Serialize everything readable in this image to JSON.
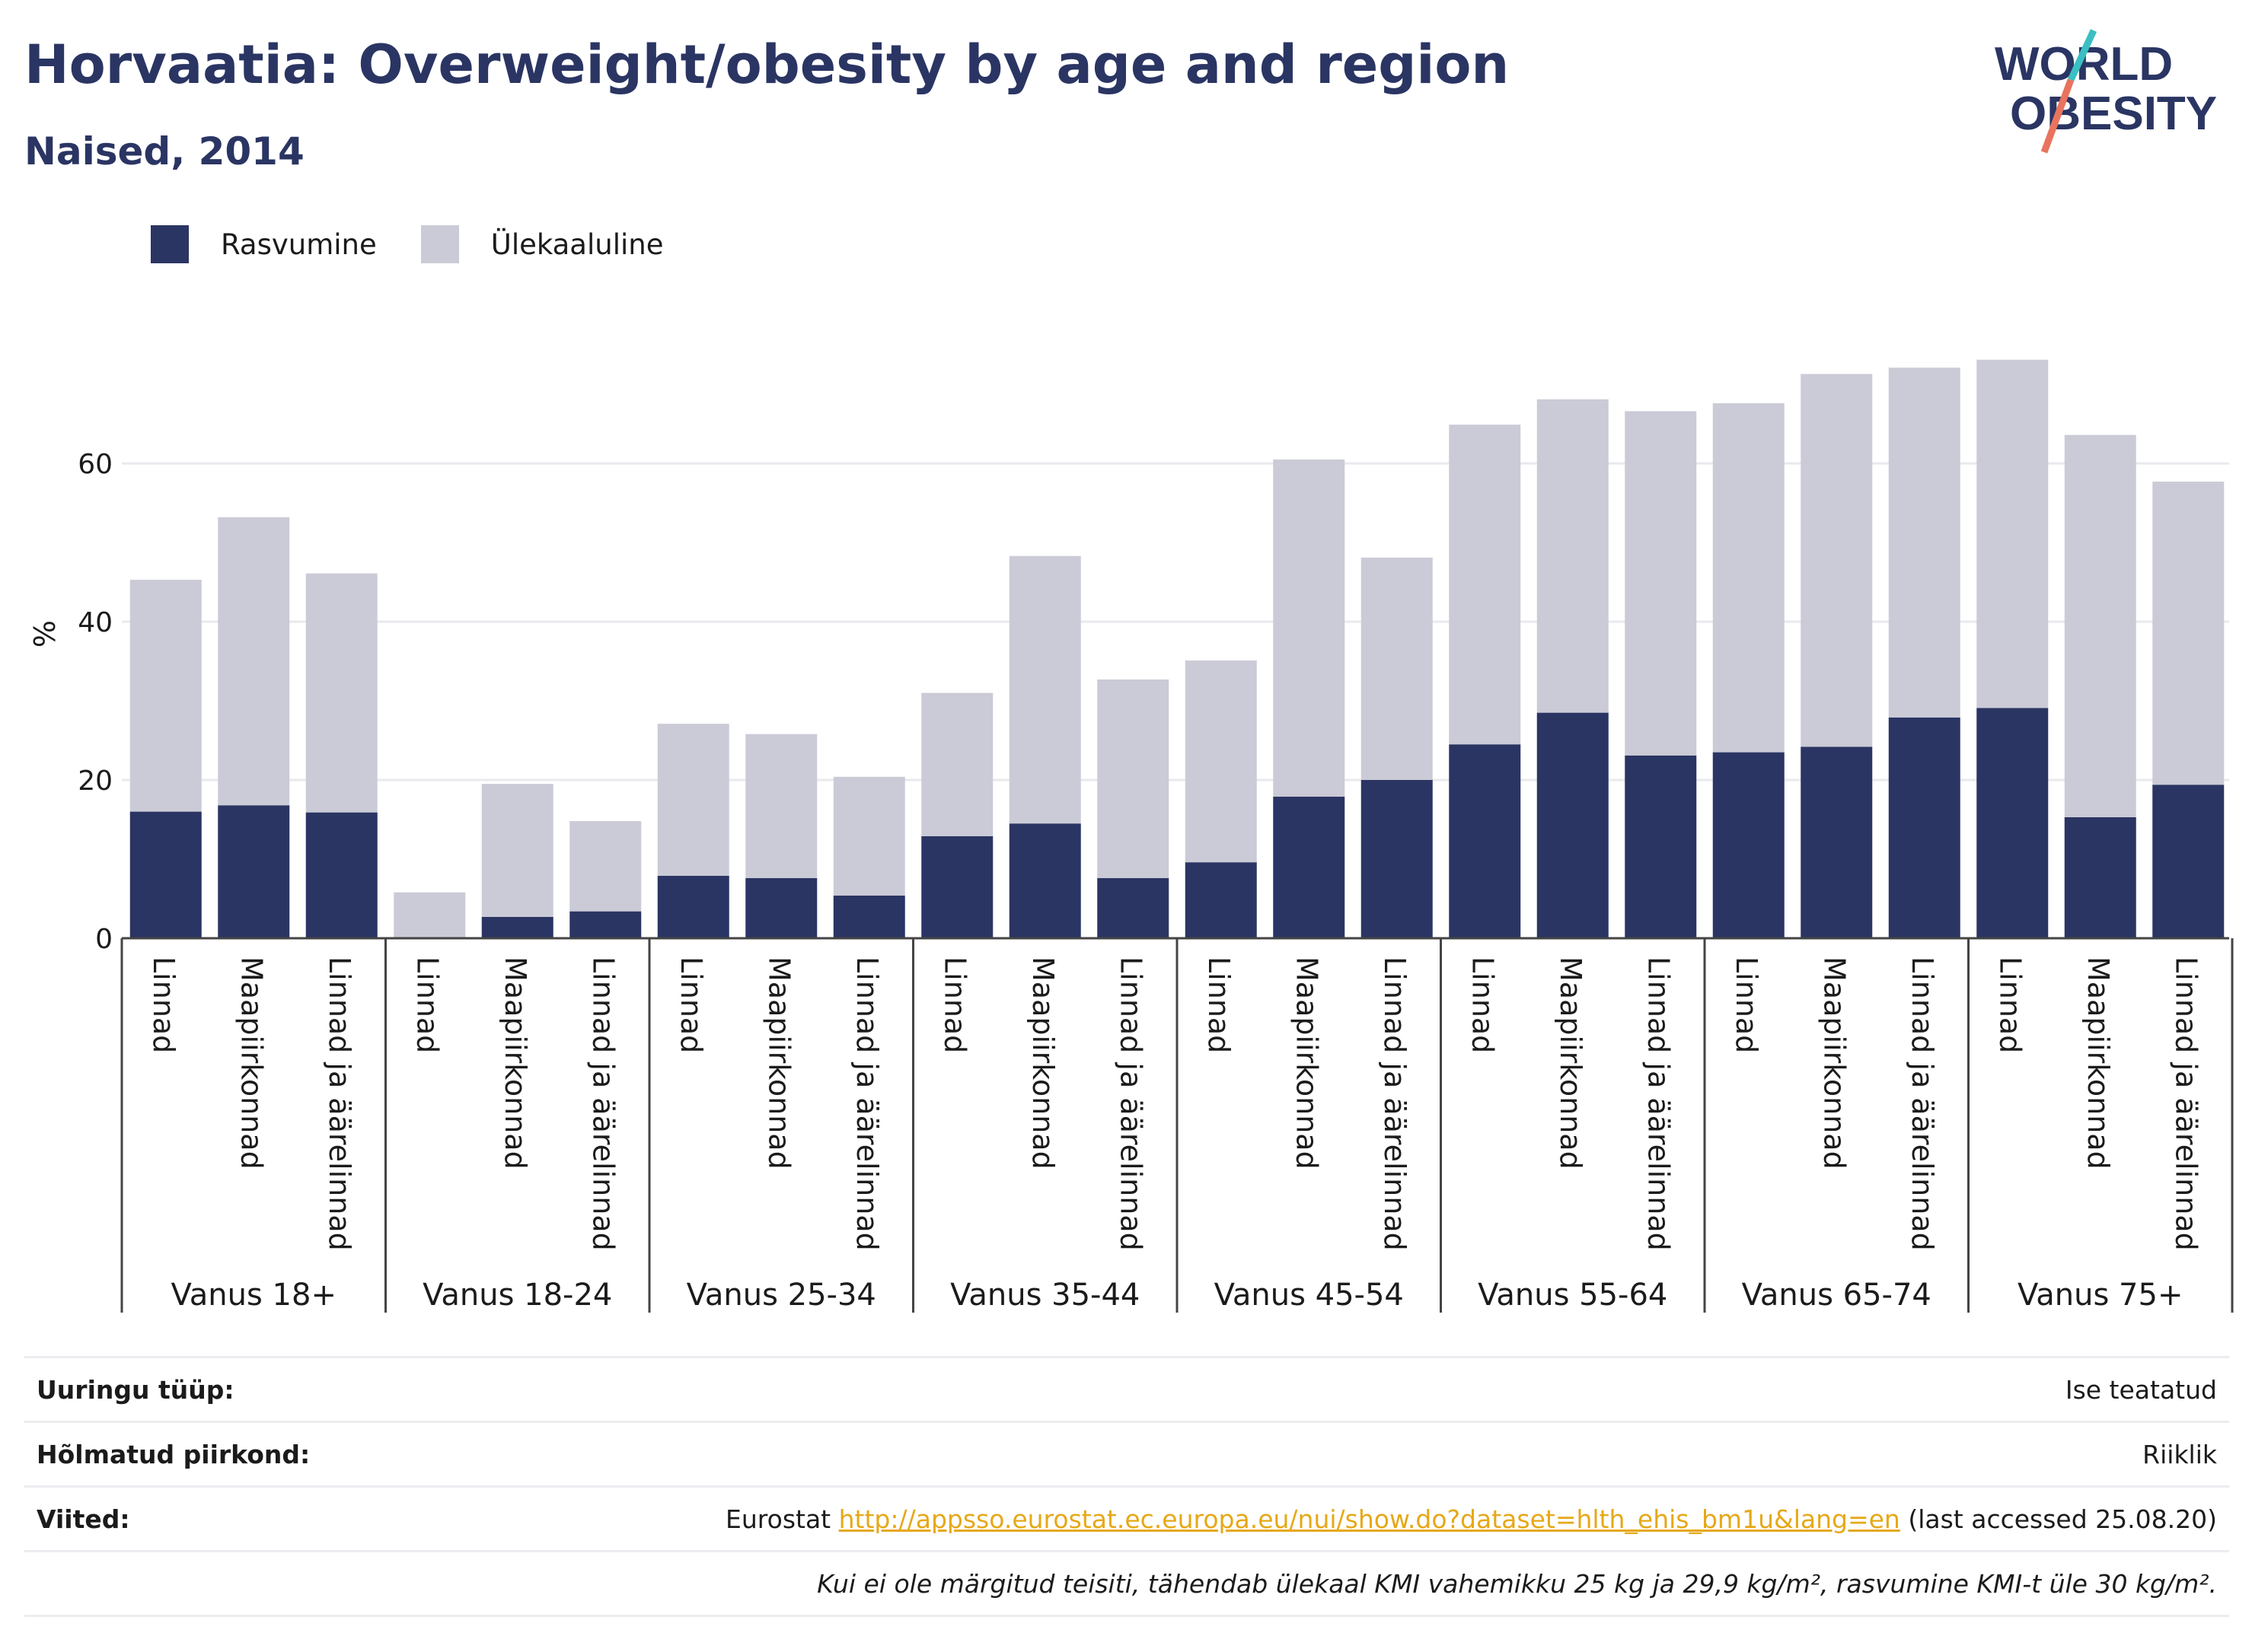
{
  "header": {
    "title": "Horvaatia: Overweight/obesity by age and region",
    "subtitle": "Naised, 2014",
    "logo_line1": "WORLD",
    "logo_line2": "OBESITY"
  },
  "colors": {
    "obesity": "#2a3563",
    "overweight": "#cbcbd7",
    "title": "#2a3563",
    "link": "#e6a817"
  },
  "chart_data": {
    "type": "bar",
    "stacked": true,
    "ylabel": "%",
    "ylim": [
      0,
      80
    ],
    "yticks": [
      0,
      20,
      40,
      60
    ],
    "grid": true,
    "legend_position": "top-left",
    "groups": [
      "Vanus 18+",
      "Vanus 18-24",
      "Vanus 25-34",
      "Vanus 35-44",
      "Vanus 45-54",
      "Vanus 55-64",
      "Vanus 65-74",
      "Vanus 75+"
    ],
    "subcategories": [
      "Linnad",
      "Maapiirkonnad",
      "Linnad ja äärelinnad"
    ],
    "series": [
      {
        "name": "Rasvumine",
        "values": [
          16.0,
          16.8,
          15.9,
          0.0,
          2.7,
          3.4,
          7.9,
          7.6,
          5.4,
          12.9,
          14.5,
          7.6,
          9.6,
          17.9,
          20.0,
          24.5,
          28.5,
          23.1,
          23.5,
          24.2,
          27.9,
          29.1,
          15.3,
          19.4
        ]
      },
      {
        "name": "Ülekaaluline",
        "values": [
          29.3,
          36.4,
          30.2,
          5.8,
          16.8,
          11.4,
          19.2,
          18.2,
          15.0,
          18.1,
          33.8,
          25.1,
          25.5,
          42.6,
          28.1,
          40.4,
          39.6,
          43.5,
          44.1,
          47.1,
          44.2,
          44.0,
          48.3,
          38.3
        ]
      }
    ]
  },
  "info": {
    "survey_type_label": "Uuringu tüüp:",
    "survey_type_value": "Ise teatatud",
    "region_label": "Hõlmatud piirkond:",
    "region_value": "Riiklik",
    "refs_label": "Viited:",
    "refs_prefix": "Eurostat",
    "refs_link": "http://appsso.eurostat.ec.europa.eu/nui/show.do?dataset=hlth_ehis_bm1u&lang=en",
    "refs_suffix": "(last accessed 25.08.20)",
    "note": "Kui ei ole märgitud teisiti, tähendab ülekaal KMI vahemikku 25 kg ja 29,9 kg/m², rasvumine KMI-t üle 30 kg/m²."
  }
}
